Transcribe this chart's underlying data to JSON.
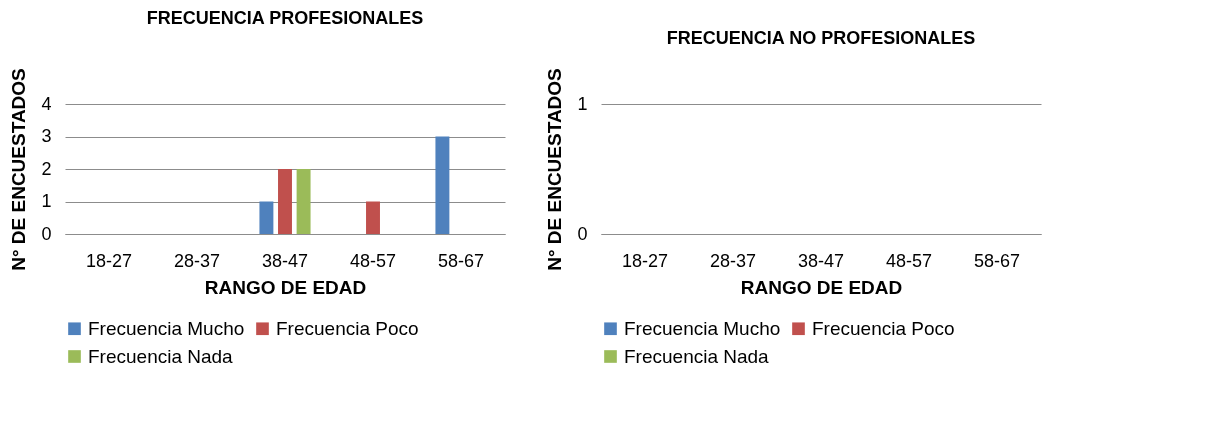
{
  "chart_data": [
    {
      "type": "bar",
      "title": "FRECUENCIA PROFESIONALES",
      "xlabel": "RANGO DE EDAD",
      "ylabel": "N° DE ENCUESTADOS",
      "categories": [
        "18-27",
        "28-37",
        "38-47",
        "48-57",
        "58-67"
      ],
      "ylim": [
        0,
        4
      ],
      "yticks": [
        0,
        1,
        2,
        3,
        4
      ],
      "grid": "y",
      "legend": "bottom",
      "series": [
        {
          "name": "Frecuencia Mucho",
          "color": "#4f81bd",
          "values": [
            0,
            0,
            1,
            0,
            3
          ]
        },
        {
          "name": "Frecuencia Poco",
          "color": "#c0504d",
          "values": [
            0,
            0,
            2,
            1,
            0
          ]
        },
        {
          "name": "Frecuencia Nada",
          "color": "#9bbb59",
          "values": [
            0,
            0,
            2,
            0,
            0
          ]
        }
      ]
    },
    {
      "type": "bar",
      "title": "FRECUENCIA NO PROFESIONALES",
      "xlabel": "RANGO DE EDAD",
      "ylabel": "N° DE ENCUESTADOS",
      "categories": [
        "18-27",
        "28-37",
        "38-47",
        "48-57",
        "58-67"
      ],
      "ylim": [
        0,
        1
      ],
      "yticks": [
        0,
        1
      ],
      "grid": "y",
      "legend": "bottom",
      "series": [
        {
          "name": "Frecuencia Mucho",
          "color": "#4f81bd",
          "values": [
            0,
            0,
            0,
            0,
            0
          ]
        },
        {
          "name": "Frecuencia Poco",
          "color": "#c0504d",
          "values": [
            0,
            0,
            0,
            0,
            0
          ]
        },
        {
          "name": "Frecuencia Nada",
          "color": "#9bbb59",
          "values": [
            0,
            0,
            0,
            0,
            0
          ]
        }
      ]
    }
  ]
}
